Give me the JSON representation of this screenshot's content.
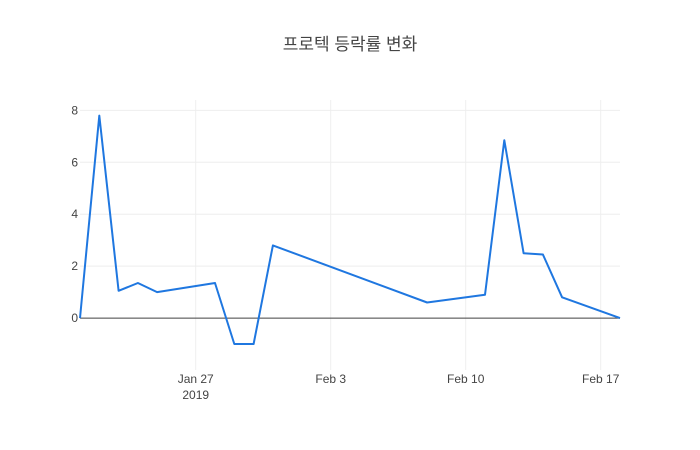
{
  "chart_data": {
    "type": "line",
    "title": "프로텍 등락률 변화",
    "xlabel": "",
    "ylabel": "",
    "x_range": [
      "2019-01-21",
      "2019-02-18"
    ],
    "ylim": [
      -2.0,
      8.4
    ],
    "y_ticks": [
      0,
      2,
      4,
      6,
      8
    ],
    "x_ticks": [
      {
        "date": "2019-01-27",
        "label": "Jan 27",
        "sublabel": "2019"
      },
      {
        "date": "2019-02-03",
        "label": "Feb 3",
        "sublabel": ""
      },
      {
        "date": "2019-02-10",
        "label": "Feb 10",
        "sublabel": ""
      },
      {
        "date": "2019-02-17",
        "label": "Feb 17",
        "sublabel": ""
      }
    ],
    "grid": true,
    "zero_line": true,
    "series": [
      {
        "color": "#1f77e0",
        "x": [
          "2019-01-21",
          "2019-01-22",
          "2019-01-23",
          "2019-01-24",
          "2019-01-25",
          "2019-01-28",
          "2019-01-29",
          "2019-01-30",
          "2019-01-31",
          "2019-02-08",
          "2019-02-11",
          "2019-02-12",
          "2019-02-13",
          "2019-02-14",
          "2019-02-15",
          "2019-02-18"
        ],
        "y": [
          0.0,
          7.8,
          1.05,
          1.35,
          1.0,
          1.35,
          -1.0,
          -1.0,
          2.8,
          0.6,
          0.9,
          6.85,
          2.5,
          2.45,
          0.8,
          0.0
        ]
      }
    ]
  }
}
